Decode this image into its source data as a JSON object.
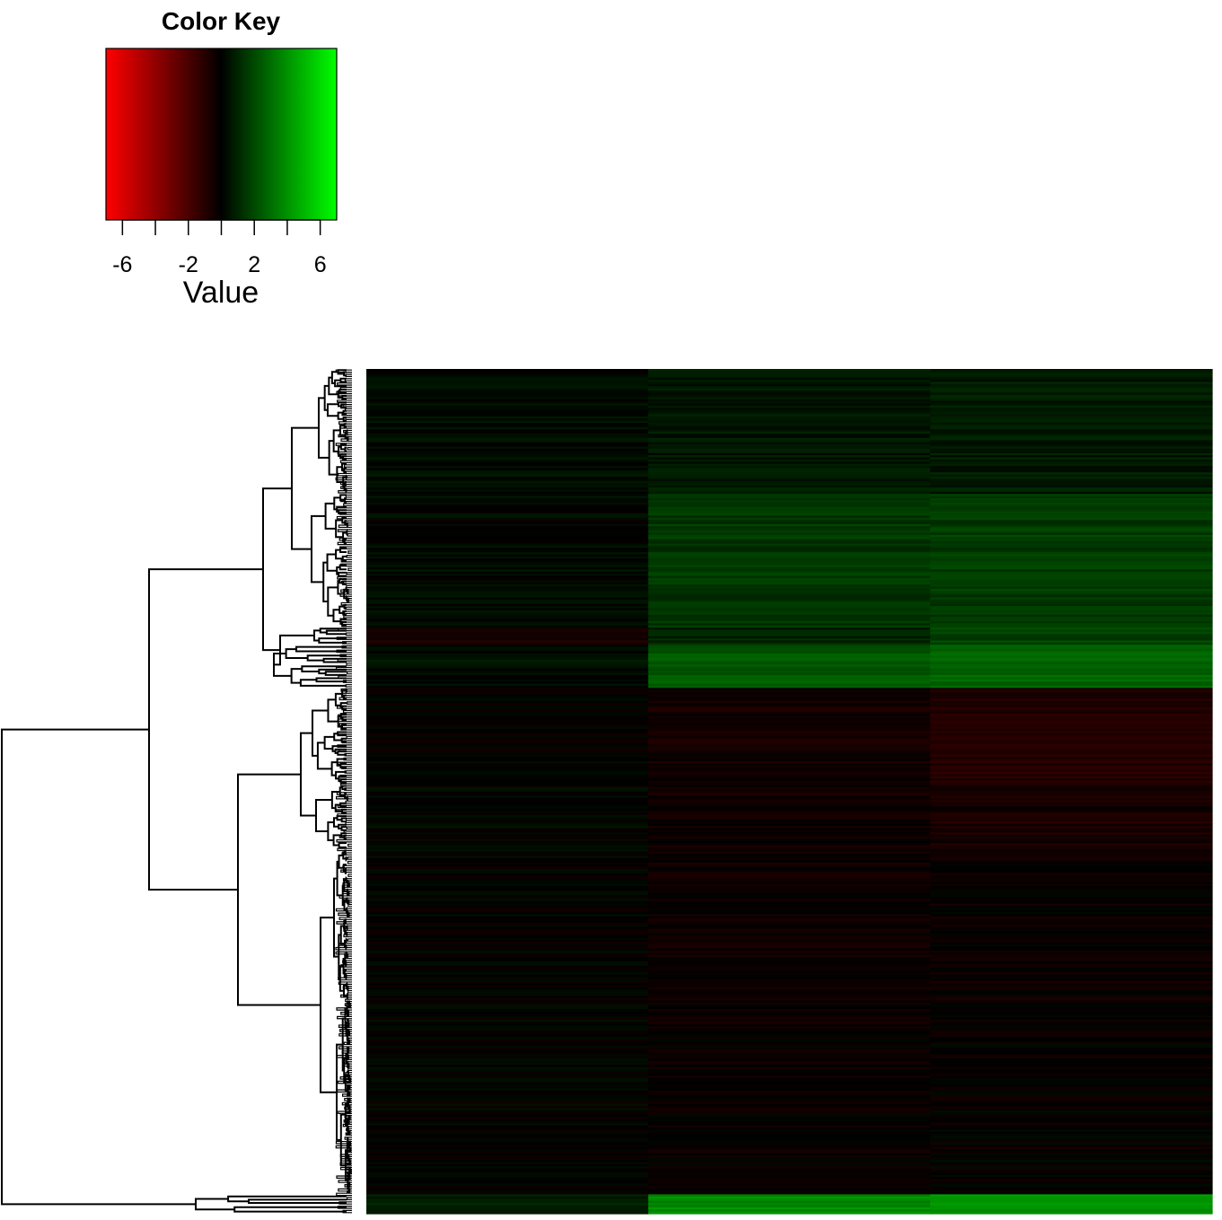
{
  "chart_data": {
    "type": "heatmap",
    "color_key": {
      "title": "Color Key",
      "xlabel": "Value",
      "range": [
        -7,
        7
      ],
      "ticks": [
        -6,
        -4,
        -2,
        0,
        2,
        4,
        6
      ],
      "tick_labels": [
        "-6",
        "-2",
        "2",
        "6"
      ],
      "colors": {
        "low": "#ff0000",
        "mid": "#000000",
        "high": "#00ff00"
      }
    },
    "columns": 3,
    "row_dendrogram": true,
    "row_blocks": [
      {
        "rows": 58,
        "values": [
          0.3,
          0.6,
          0.7
        ]
      },
      {
        "rows": 62,
        "values": [
          0.2,
          1.5,
          1.6
        ]
      },
      {
        "rows": 8,
        "values": [
          -0.8,
          0.9,
          1.8
        ]
      },
      {
        "rows": 20,
        "values": [
          0.4,
          2.4,
          2.8
        ]
      },
      {
        "rows": 45,
        "values": [
          -0.1,
          -0.5,
          -0.9
        ]
      },
      {
        "rows": 30,
        "values": [
          0.1,
          -0.4,
          -0.6
        ]
      },
      {
        "rows": 70,
        "values": [
          0.0,
          -0.3,
          -0.2
        ]
      },
      {
        "rows": 90,
        "values": [
          0.0,
          -0.2,
          -0.1
        ]
      },
      {
        "rows": 9,
        "values": [
          0.8,
          3.8,
          4.1
        ]
      }
    ]
  }
}
